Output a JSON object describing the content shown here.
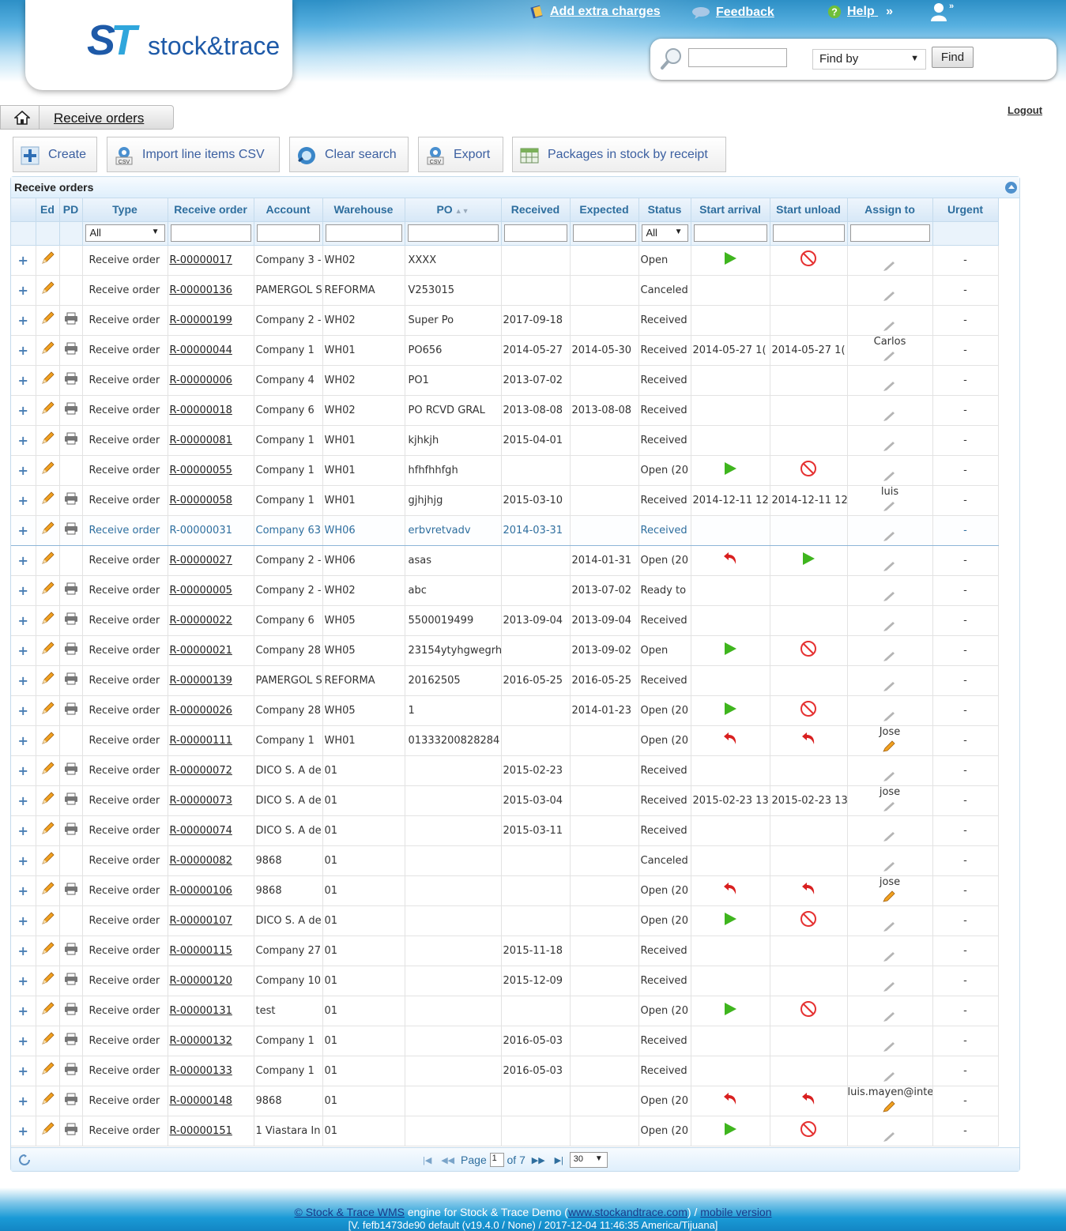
{
  "header": {
    "logo_text": "stock&trace",
    "links": {
      "extra_charges": "Add extra charges",
      "feedback": "Feedback",
      "help": "Help"
    },
    "help_suffix": "»",
    "search": {
      "value": "",
      "find_by_label": "Find by",
      "find_button": "Find"
    }
  },
  "breadcrumb": {
    "current": "Receive orders"
  },
  "logout": "Logout",
  "toolbar": {
    "create": "Create",
    "import_csv": "Import line items CSV",
    "clear_search": "Clear search",
    "export": "Export",
    "packages": "Packages in stock by receipt"
  },
  "grid": {
    "title": "Receive orders",
    "columns": [
      "",
      "Ed",
      "PD",
      "Type",
      "Receive order",
      "Account",
      "Warehouse",
      "PO",
      "Received",
      "Expected",
      "Status",
      "Start arrival",
      "Start unload",
      "Assign to",
      "Urgent"
    ],
    "sort_column": "PO",
    "filters": {
      "type": "All",
      "status": "All"
    },
    "rows": [
      {
        "print": false,
        "type": "Receive order",
        "ro": "R-00000017",
        "account": "Company 3 -",
        "wh": "WH02",
        "po": "XXXX",
        "received": "",
        "expected": "",
        "status": "Open",
        "arrival": "play-icon",
        "unload": "cancel-icon",
        "assign": "",
        "urgent": "-"
      },
      {
        "print": false,
        "type": "Receive order",
        "ro": "R-00000136",
        "account": "PAMERGOL S",
        "wh": "REFORMA",
        "po": "V253015",
        "received": "",
        "expected": "",
        "status": "Canceled",
        "arrival": "",
        "unload": "",
        "assign": "",
        "urgent": "-"
      },
      {
        "print": true,
        "type": "Receive order",
        "ro": "R-00000199",
        "account": "Company 2 -",
        "wh": "WH02",
        "po": "Super Po",
        "received": "2017-09-18",
        "expected": "",
        "status": "Received",
        "arrival": "",
        "unload": "",
        "assign": "",
        "urgent": "-"
      },
      {
        "print": true,
        "type": "Receive order",
        "ro": "R-00000044",
        "account": "Company 1",
        "wh": "WH01",
        "po": "PO656",
        "received": "2014-05-27",
        "expected": "2014-05-30",
        "status": "Received",
        "arrival": "2014-05-27 1(",
        "unload": "2014-05-27 1(",
        "assign": "Carlos",
        "urgent": "-"
      },
      {
        "print": true,
        "type": "Receive order",
        "ro": "R-00000006",
        "account": "Company 4",
        "wh": "WH02",
        "po": "PO1",
        "received": "2013-07-02",
        "expected": "",
        "status": "Received",
        "arrival": "",
        "unload": "",
        "assign": "",
        "urgent": "-"
      },
      {
        "print": true,
        "type": "Receive order",
        "ro": "R-00000018",
        "account": "Company 6",
        "wh": "WH02",
        "po": "PO RCVD GRAL",
        "received": "2013-08-08",
        "expected": "2013-08-08",
        "status": "Received",
        "arrival": "",
        "unload": "",
        "assign": "",
        "urgent": "-"
      },
      {
        "print": true,
        "type": "Receive order",
        "ro": "R-00000081",
        "account": "Company 1",
        "wh": "WH01",
        "po": "kjhkjh",
        "received": "2015-04-01",
        "expected": "",
        "status": "Received",
        "arrival": "",
        "unload": "",
        "assign": "",
        "urgent": "-"
      },
      {
        "print": false,
        "type": "Receive order",
        "ro": "R-00000055",
        "account": "Company 1",
        "wh": "WH01",
        "po": "hfhfhhfgh",
        "received": "",
        "expected": "",
        "status": "Open (20",
        "arrival": "play-icon",
        "unload": "cancel-icon",
        "assign": "",
        "urgent": "-"
      },
      {
        "print": true,
        "type": "Receive order",
        "ro": "R-00000058",
        "account": "Company 1",
        "wh": "WH01",
        "po": "gjhjhjg",
        "received": "2015-03-10",
        "expected": "",
        "status": "Received",
        "arrival": "2014-12-11 12",
        "unload": "2014-12-11 12",
        "assign": "luis",
        "urgent": "-"
      },
      {
        "print": true,
        "type": "Receive order",
        "ro": "R-00000031",
        "account": "Company 63",
        "wh": "WH06",
        "po": "erbvretvadv",
        "received": "2014-03-31",
        "expected": "",
        "status": "Received",
        "arrival": "",
        "unload": "",
        "assign": "",
        "urgent": "-",
        "highlight": true
      },
      {
        "print": false,
        "type": "Receive order",
        "ro": "R-00000027",
        "account": "Company 2 -",
        "wh": "WH06",
        "po": "asas",
        "received": "",
        "expected": "2014-01-31",
        "status": "Open (20",
        "arrival": "undo-icon",
        "unload": "play-icon",
        "assign": "",
        "urgent": "-"
      },
      {
        "print": true,
        "type": "Receive order",
        "ro": "R-00000005",
        "account": "Company 2 -",
        "wh": "WH02",
        "po": "abc",
        "received": "",
        "expected": "2013-07-02",
        "status": "Ready to",
        "arrival": "",
        "unload": "",
        "assign": "",
        "urgent": "-"
      },
      {
        "print": true,
        "type": "Receive order",
        "ro": "R-00000022",
        "account": "Company 6",
        "wh": "WH05",
        "po": "5500019499",
        "received": "2013-09-04",
        "expected": "2013-09-04",
        "status": "Received",
        "arrival": "",
        "unload": "",
        "assign": "",
        "urgent": "-"
      },
      {
        "print": true,
        "type": "Receive order",
        "ro": "R-00000021",
        "account": "Company 28",
        "wh": "WH05",
        "po": "23154ytyhgwegrh",
        "received": "",
        "expected": "2013-09-02",
        "status": "Open",
        "arrival": "play-icon",
        "unload": "cancel-icon",
        "assign": "",
        "urgent": "-"
      },
      {
        "print": true,
        "type": "Receive order",
        "ro": "R-00000139",
        "account": "PAMERGOL S",
        "wh": "REFORMA",
        "po": "20162505",
        "received": "2016-05-25",
        "expected": "2016-05-25",
        "status": "Received",
        "arrival": "",
        "unload": "",
        "assign": "",
        "urgent": "-"
      },
      {
        "print": true,
        "type": "Receive order",
        "ro": "R-00000026",
        "account": "Company 28",
        "wh": "WH05",
        "po": "1",
        "received": "",
        "expected": "2014-01-23",
        "status": "Open (20",
        "arrival": "play-icon",
        "unload": "cancel-icon",
        "assign": "",
        "urgent": "-"
      },
      {
        "print": false,
        "type": "Receive order",
        "ro": "R-00000111",
        "account": "Company 1",
        "wh": "WH01",
        "po": "01333200828284",
        "received": "",
        "expected": "",
        "status": "Open (20",
        "arrival": "undo-icon",
        "unload": "undo-icon",
        "assign": "Jose",
        "urgent": "-",
        "colored_pen": true
      },
      {
        "print": true,
        "type": "Receive order",
        "ro": "R-00000072",
        "account": "DICO S. A de",
        "wh": "01",
        "po": "",
        "received": "2015-02-23",
        "expected": "",
        "status": "Received",
        "arrival": "",
        "unload": "",
        "assign": "",
        "urgent": "-"
      },
      {
        "print": true,
        "type": "Receive order",
        "ro": "R-00000073",
        "account": "DICO S. A de",
        "wh": "01",
        "po": "",
        "received": "2015-03-04",
        "expected": "",
        "status": "Received",
        "arrival": "2015-02-23 13",
        "unload": "2015-02-23 13",
        "assign": "jose",
        "urgent": "-"
      },
      {
        "print": true,
        "type": "Receive order",
        "ro": "R-00000074",
        "account": "DICO S. A de",
        "wh": "01",
        "po": "",
        "received": "2015-03-11",
        "expected": "",
        "status": "Received",
        "arrival": "",
        "unload": "",
        "assign": "",
        "urgent": "-"
      },
      {
        "print": false,
        "type": "Receive order",
        "ro": "R-00000082",
        "account": "9868",
        "wh": "01",
        "po": "",
        "received": "",
        "expected": "",
        "status": "Canceled",
        "arrival": "",
        "unload": "",
        "assign": "",
        "urgent": "-"
      },
      {
        "print": true,
        "type": "Receive order",
        "ro": "R-00000106",
        "account": "9868",
        "wh": "01",
        "po": "",
        "received": "",
        "expected": "",
        "status": "Open (20",
        "arrival": "undo-icon",
        "unload": "undo-icon",
        "assign": "jose",
        "urgent": "-",
        "colored_pen": true
      },
      {
        "print": false,
        "type": "Receive order",
        "ro": "R-00000107",
        "account": "DICO S. A de",
        "wh": "01",
        "po": "",
        "received": "",
        "expected": "",
        "status": "Open (20",
        "arrival": "play-icon",
        "unload": "cancel-icon",
        "assign": "",
        "urgent": "-"
      },
      {
        "print": true,
        "type": "Receive order",
        "ro": "R-00000115",
        "account": "Company 27",
        "wh": "01",
        "po": "",
        "received": "2015-11-18",
        "expected": "",
        "status": "Received",
        "arrival": "",
        "unload": "",
        "assign": "",
        "urgent": "-"
      },
      {
        "print": true,
        "type": "Receive order",
        "ro": "R-00000120",
        "account": "Company 10",
        "wh": "01",
        "po": "",
        "received": "2015-12-09",
        "expected": "",
        "status": "Received",
        "arrival": "",
        "unload": "",
        "assign": "",
        "urgent": "-"
      },
      {
        "print": true,
        "type": "Receive order",
        "ro": "R-00000131",
        "account": "test",
        "wh": "01",
        "po": "",
        "received": "",
        "expected": "",
        "status": "Open (20",
        "arrival": "play-icon",
        "unload": "cancel-icon",
        "assign": "",
        "urgent": "-"
      },
      {
        "print": true,
        "type": "Receive order",
        "ro": "R-00000132",
        "account": "Company 1",
        "wh": "01",
        "po": "",
        "received": "2016-05-03",
        "expected": "",
        "status": "Received",
        "arrival": "",
        "unload": "",
        "assign": "",
        "urgent": "-"
      },
      {
        "print": true,
        "type": "Receive order",
        "ro": "R-00000133",
        "account": "Company 1",
        "wh": "01",
        "po": "",
        "received": "2016-05-03",
        "expected": "",
        "status": "Received",
        "arrival": "",
        "unload": "",
        "assign": "",
        "urgent": "-"
      },
      {
        "print": true,
        "type": "Receive order",
        "ro": "R-00000148",
        "account": "9868",
        "wh": "01",
        "po": "",
        "received": "",
        "expected": "",
        "status": "Open (20",
        "arrival": "undo-icon",
        "unload": "undo-icon",
        "assign": "luis.mayen@inte",
        "urgent": "-",
        "colored_pen": true
      },
      {
        "print": true,
        "type": "Receive order",
        "ro": "R-00000151",
        "account": "1 Viastara In",
        "wh": "01",
        "po": "",
        "received": "",
        "expected": "",
        "status": "Open (20",
        "arrival": "play-icon",
        "unload": "cancel-icon",
        "assign": "",
        "urgent": "-"
      }
    ]
  },
  "pager": {
    "page_label": "Page",
    "page": "1",
    "of_label": "of 7",
    "rows_per_page": "30"
  },
  "footer": {
    "copyright": "© Stock & Trace WMS",
    "engine_text": " engine for Stock & Trace Demo (",
    "site": "www.stockandtrace.com",
    "sep": ") / ",
    "mobile": "mobile version",
    "version": "[V. fefb1473de90 default (v19.4.0 / None) / 2017-12-04 11:46:35 America/Tijuana]"
  },
  "colors": {
    "accent": "#2e6e9e",
    "header_blue": "#2d8fc6",
    "play_green": "#3fb51e",
    "cancel_red": "#e53030"
  }
}
